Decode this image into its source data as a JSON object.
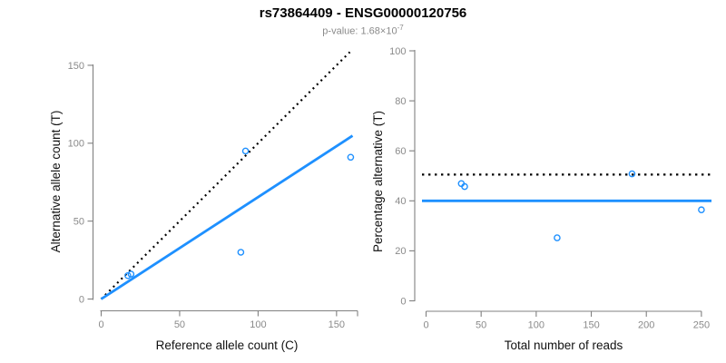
{
  "header": {
    "title": "rs73864409 - ENSG00000120756",
    "p_value_prefix": "p-value: 1.68×10",
    "p_value_exponent": "-7"
  },
  "chart_data": [
    {
      "type": "scatter",
      "panel": "left",
      "xlabel": "Reference allele count (C)",
      "ylabel": "Alternative allele count (T)",
      "xlim": [
        0,
        163
      ],
      "ylim": [
        0,
        158
      ],
      "xticks": [
        0,
        50,
        100,
        150
      ],
      "yticks": [
        0,
        50,
        100,
        150
      ],
      "grid": false,
      "legend": false,
      "point_color": "#1E90FF",
      "points": [
        [
          17,
          15
        ],
        [
          19,
          16
        ],
        [
          89,
          30
        ],
        [
          92,
          95
        ],
        [
          159,
          91
        ]
      ],
      "lines": [
        {
          "name": "identity-line",
          "style": "dotted",
          "color": "#000000",
          "from": [
            0,
            0
          ],
          "to": [
            158.5,
            158.5
          ]
        },
        {
          "name": "fitted-ratio-line",
          "style": "solid",
          "color": "#1E90FF",
          "from": [
            0,
            0
          ],
          "to": [
            160.2,
            104.8
          ]
        }
      ]
    },
    {
      "type": "scatter",
      "panel": "right",
      "xlabel": "Total number of reads",
      "ylabel": "Percentage alternative (T)",
      "xlim": [
        0,
        258
      ],
      "ylim": [
        0,
        100
      ],
      "xticks": [
        0,
        50,
        100,
        150,
        200,
        250
      ],
      "yticks": [
        0,
        20,
        40,
        60,
        80,
        100
      ],
      "grid": false,
      "legend": false,
      "point_color": "#1E90FF",
      "points": [
        [
          32,
          46.9
        ],
        [
          35,
          45.7
        ],
        [
          119,
          25.2
        ],
        [
          187,
          50.8
        ],
        [
          250,
          36.4
        ]
      ],
      "lines": [
        {
          "name": "expected-50-percent-line",
          "style": "dotted",
          "color": "#000000",
          "y": 50.5
        },
        {
          "name": "mean-percentage-line",
          "style": "solid",
          "color": "#1E90FF",
          "y": 40
        }
      ]
    }
  ],
  "style": {
    "axis_color": "#808080",
    "tick_label_color": "#8a8a8a",
    "accent_blue": "#1E90FF"
  }
}
